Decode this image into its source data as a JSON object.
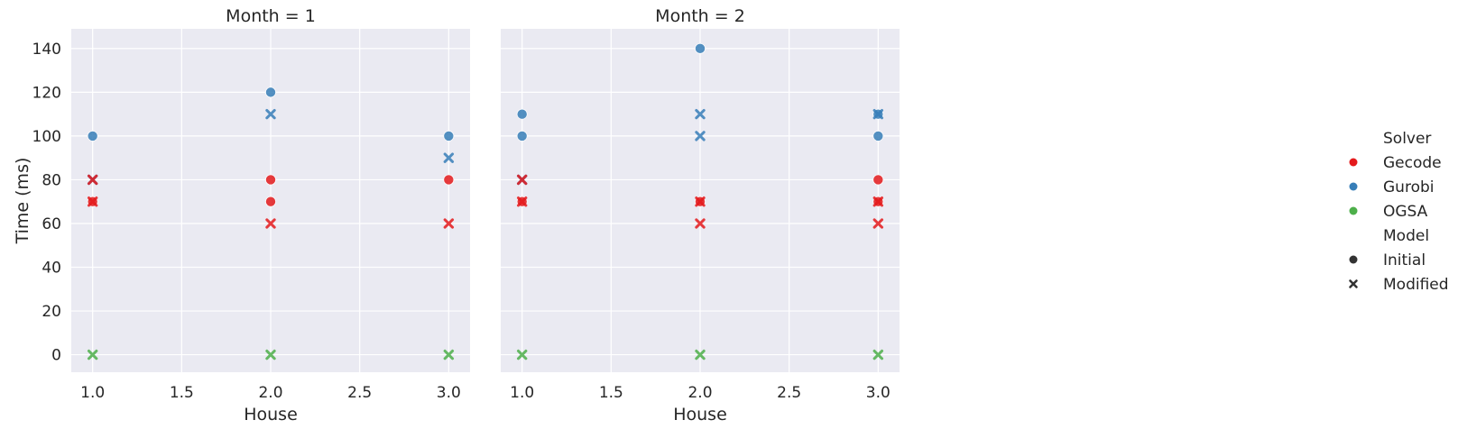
{
  "chart_data": {
    "type": "scatter",
    "ylabel": "Time (ms)",
    "ylim": [
      -8,
      149
    ],
    "yticks": [
      0,
      20,
      40,
      60,
      80,
      100,
      120,
      140
    ],
    "xlim": [
      0.88,
      3.12
    ],
    "xticks": [
      1.0,
      1.5,
      2.0,
      2.5,
      3.0
    ],
    "xtick_labels": [
      "1.0",
      "1.5",
      "2.0",
      "2.5",
      "3.0"
    ],
    "grid": true,
    "legend": {
      "placement": "right",
      "hue_title": "Solver",
      "hue_entries": [
        {
          "name": "Gecode",
          "color": "#e41a1c"
        },
        {
          "name": "Gurobi",
          "color": "#377eb8"
        },
        {
          "name": "OGSA",
          "color": "#4daf4a"
        }
      ],
      "style_title": "Model",
      "style_entries": [
        {
          "name": "Initial",
          "marker": "circle"
        },
        {
          "name": "Modified",
          "marker": "x"
        }
      ]
    },
    "panels": [
      {
        "title": "Month = 1",
        "xlabel": "House",
        "points": [
          {
            "x": 1.0,
            "y": 100,
            "solver": "Gurobi",
            "model": "Initial"
          },
          {
            "x": 1.0,
            "y": 80,
            "solver": "Gurobi",
            "model": "Modified"
          },
          {
            "x": 1.0,
            "y": 80,
            "solver": "Gecode",
            "model": "Modified"
          },
          {
            "x": 1.0,
            "y": 70,
            "solver": "Gecode",
            "model": "Initial"
          },
          {
            "x": 1.0,
            "y": 70,
            "solver": "Gecode",
            "model": "Modified"
          },
          {
            "x": 1.0,
            "y": 0,
            "solver": "OGSA",
            "model": "Modified"
          },
          {
            "x": 2.0,
            "y": 120,
            "solver": "Gurobi",
            "model": "Initial"
          },
          {
            "x": 2.0,
            "y": 110,
            "solver": "Gurobi",
            "model": "Modified"
          },
          {
            "x": 2.0,
            "y": 80,
            "solver": "Gecode",
            "model": "Initial"
          },
          {
            "x": 2.0,
            "y": 70,
            "solver": "Gecode",
            "model": "Initial"
          },
          {
            "x": 2.0,
            "y": 60,
            "solver": "Gecode",
            "model": "Modified"
          },
          {
            "x": 2.0,
            "y": 0,
            "solver": "OGSA",
            "model": "Modified"
          },
          {
            "x": 3.0,
            "y": 100,
            "solver": "Gurobi",
            "model": "Initial"
          },
          {
            "x": 3.0,
            "y": 90,
            "solver": "Gurobi",
            "model": "Modified"
          },
          {
            "x": 3.0,
            "y": 80,
            "solver": "Gecode",
            "model": "Initial"
          },
          {
            "x": 3.0,
            "y": 60,
            "solver": "Gecode",
            "model": "Modified"
          },
          {
            "x": 3.0,
            "y": 0,
            "solver": "OGSA",
            "model": "Modified"
          }
        ]
      },
      {
        "title": "Month = 2",
        "xlabel": "House",
        "points": [
          {
            "x": 1.0,
            "y": 110,
            "solver": "Gurobi",
            "model": "Initial"
          },
          {
            "x": 1.0,
            "y": 100,
            "solver": "Gurobi",
            "model": "Initial"
          },
          {
            "x": 1.0,
            "y": 80,
            "solver": "Gurobi",
            "model": "Modified"
          },
          {
            "x": 1.0,
            "y": 80,
            "solver": "Gecode",
            "model": "Modified"
          },
          {
            "x": 1.0,
            "y": 70,
            "solver": "Gecode",
            "model": "Initial"
          },
          {
            "x": 1.0,
            "y": 70,
            "solver": "Gecode",
            "model": "Modified"
          },
          {
            "x": 1.0,
            "y": 0,
            "solver": "OGSA",
            "model": "Modified"
          },
          {
            "x": 2.0,
            "y": 140,
            "solver": "Gurobi",
            "model": "Initial"
          },
          {
            "x": 2.0,
            "y": 110,
            "solver": "Gurobi",
            "model": "Modified"
          },
          {
            "x": 2.0,
            "y": 100,
            "solver": "Gurobi",
            "model": "Modified"
          },
          {
            "x": 2.0,
            "y": 70,
            "solver": "Gecode",
            "model": "Initial"
          },
          {
            "x": 2.0,
            "y": 70,
            "solver": "Gecode",
            "model": "Modified"
          },
          {
            "x": 2.0,
            "y": 60,
            "solver": "Gecode",
            "model": "Modified"
          },
          {
            "x": 2.0,
            "y": 0,
            "solver": "OGSA",
            "model": "Modified"
          },
          {
            "x": 3.0,
            "y": 110,
            "solver": "Gurobi",
            "model": "Initial"
          },
          {
            "x": 3.0,
            "y": 110,
            "solver": "Gurobi",
            "model": "Modified"
          },
          {
            "x": 3.0,
            "y": 100,
            "solver": "Gurobi",
            "model": "Initial"
          },
          {
            "x": 3.0,
            "y": 80,
            "solver": "Gecode",
            "model": "Initial"
          },
          {
            "x": 3.0,
            "y": 70,
            "solver": "Gecode",
            "model": "Initial"
          },
          {
            "x": 3.0,
            "y": 70,
            "solver": "Gecode",
            "model": "Modified"
          },
          {
            "x": 3.0,
            "y": 60,
            "solver": "Gecode",
            "model": "Modified"
          },
          {
            "x": 3.0,
            "y": 0,
            "solver": "OGSA",
            "model": "Modified"
          }
        ]
      }
    ]
  }
}
